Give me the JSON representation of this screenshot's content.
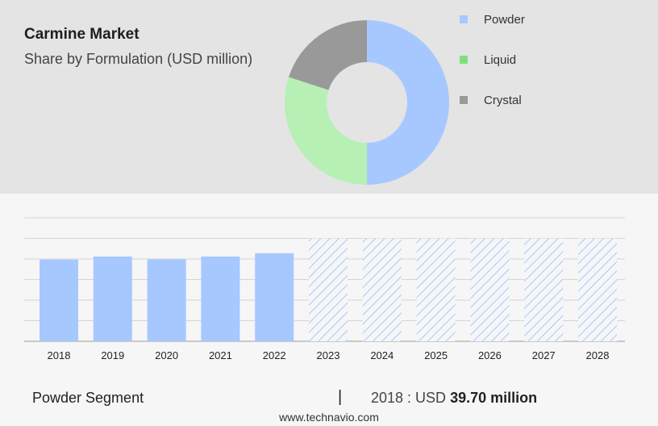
{
  "header": {
    "title": "Carmine Market",
    "subtitle": "Share by Formulation (USD million)"
  },
  "chart_data": [
    {
      "type": "pie",
      "variant": "donut",
      "series": [
        {
          "name": "Powder",
          "value": 50,
          "color": "#a7c8ff"
        },
        {
          "name": "Liquid",
          "value": 30,
          "color": "#b7f0b5"
        },
        {
          "name": "Crystal",
          "value": 20,
          "color": "#999999"
        }
      ],
      "legend_colors": {
        "Powder": "#a7c8ff",
        "Liquid": "#7ee07c",
        "Crystal": "#999999"
      },
      "legend_position": "right"
    },
    {
      "type": "bar",
      "categories": [
        "2018",
        "2019",
        "2020",
        "2021",
        "2022",
        "2023",
        "2024",
        "2025",
        "2026",
        "2027",
        "2028"
      ],
      "values": [
        39.7,
        41.2,
        39.8,
        41.2,
        42.8,
        50,
        50,
        50,
        50,
        50,
        50
      ],
      "forecast_from": "2023",
      "bar_color": "#a7c8ff",
      "forecast_style": "hatched",
      "ylim": [
        0,
        60
      ],
      "grid": true
    }
  ],
  "footer": {
    "segment": "Powder Segment",
    "separator": "|",
    "value_prefix": "2018 : USD",
    "value": "39.70 million"
  },
  "source": "www.technavio.com"
}
